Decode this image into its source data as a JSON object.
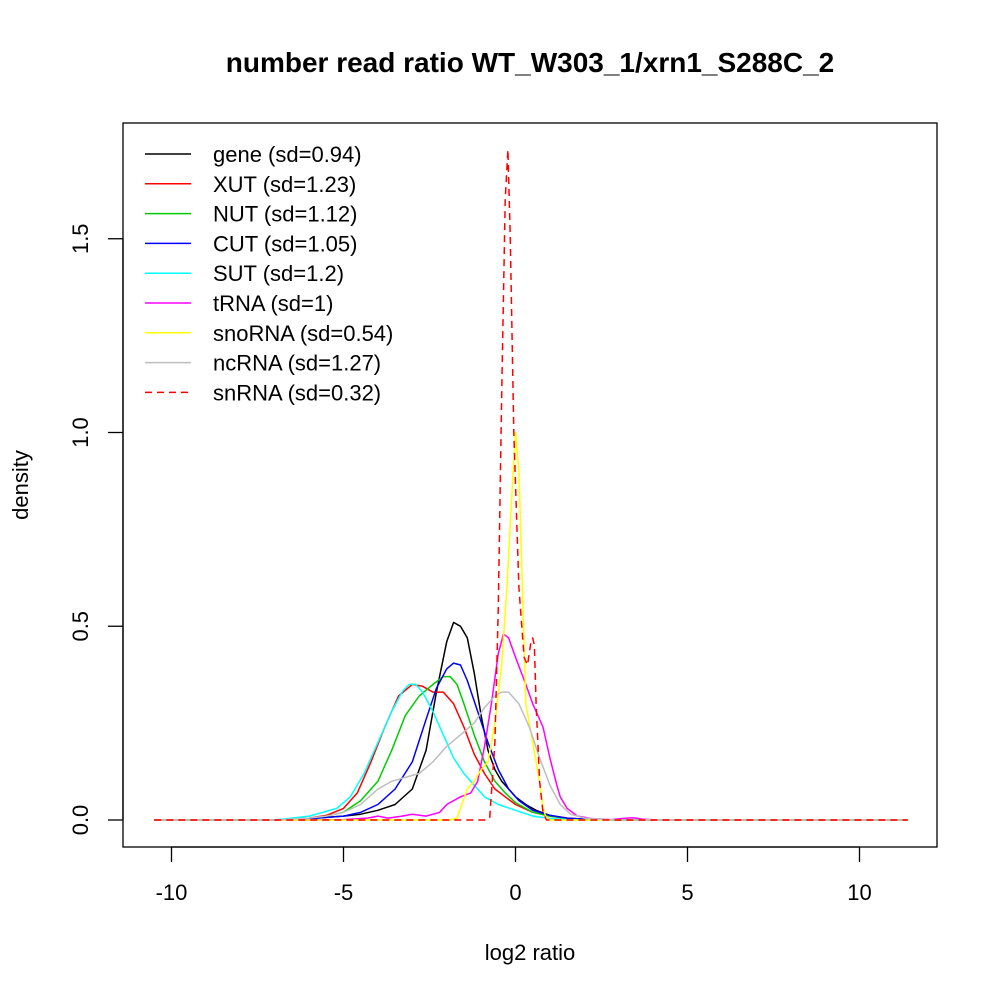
{
  "chart_data": {
    "type": "line",
    "title": "number read ratio WT_W303_1/xrn1_S288C_2",
    "xlabel": "log2 ratio",
    "ylabel": "density",
    "xlim": [
      -10.5,
      11.5
    ],
    "ylim": [
      -0.07,
      1.8
    ],
    "x_ticks": [
      -10,
      -5,
      0,
      5,
      10
    ],
    "x_tick_labels": [
      "-10",
      "-5",
      "0",
      "5",
      "10"
    ],
    "y_ticks": [
      0.0,
      0.5,
      1.0,
      1.5
    ],
    "y_tick_labels": [
      "0.0",
      "0.5",
      "1.0",
      "1.5"
    ],
    "grid": false,
    "legend_position": "top-left",
    "series": [
      {
        "name": "gene (sd=0.94)",
        "color": "#000000",
        "dash": "solid",
        "points": [
          [
            -10.5,
            0
          ],
          [
            -7,
            0
          ],
          [
            -6,
            0.004
          ],
          [
            -5,
            0.01
          ],
          [
            -4.5,
            0.015
          ],
          [
            -4,
            0.025
          ],
          [
            -3.5,
            0.04
          ],
          [
            -3,
            0.08
          ],
          [
            -2.6,
            0.18
          ],
          [
            -2.3,
            0.33
          ],
          [
            -2.0,
            0.46
          ],
          [
            -1.8,
            0.51
          ],
          [
            -1.6,
            0.5
          ],
          [
            -1.4,
            0.47
          ],
          [
            -1.2,
            0.38
          ],
          [
            -1.0,
            0.27
          ],
          [
            -0.8,
            0.18
          ],
          [
            -0.6,
            0.13
          ],
          [
            -0.4,
            0.1
          ],
          [
            -0.2,
            0.08
          ],
          [
            0,
            0.06
          ],
          [
            0.3,
            0.04
          ],
          [
            0.6,
            0.025
          ],
          [
            1,
            0.012
          ],
          [
            1.5,
            0.005
          ],
          [
            2,
            0.002
          ],
          [
            3,
            0
          ],
          [
            11.4,
            0
          ]
        ]
      },
      {
        "name": "XUT (sd=1.23)",
        "color": "#ff0000",
        "dash": "solid",
        "points": [
          [
            -10.5,
            0
          ],
          [
            -7,
            0
          ],
          [
            -6,
            0.005
          ],
          [
            -5.5,
            0.012
          ],
          [
            -5,
            0.03
          ],
          [
            -4.6,
            0.07
          ],
          [
            -4.2,
            0.15
          ],
          [
            -3.8,
            0.24
          ],
          [
            -3.4,
            0.32
          ],
          [
            -3.0,
            0.35
          ],
          [
            -2.7,
            0.345
          ],
          [
            -2.4,
            0.33
          ],
          [
            -2.1,
            0.33
          ],
          [
            -1.8,
            0.3
          ],
          [
            -1.5,
            0.24
          ],
          [
            -1.2,
            0.17
          ],
          [
            -0.9,
            0.12
          ],
          [
            -0.6,
            0.08
          ],
          [
            -0.3,
            0.06
          ],
          [
            0,
            0.04
          ],
          [
            0.5,
            0.02
          ],
          [
            1,
            0.01
          ],
          [
            1.5,
            0.005
          ],
          [
            2,
            0.002
          ],
          [
            3,
            0
          ],
          [
            11.4,
            0
          ]
        ]
      },
      {
        "name": "NUT (sd=1.12)",
        "color": "#00cd00",
        "dash": "solid",
        "points": [
          [
            -10.5,
            0
          ],
          [
            -7,
            0
          ],
          [
            -6,
            0.004
          ],
          [
            -5.5,
            0.01
          ],
          [
            -5,
            0.02
          ],
          [
            -4.5,
            0.05
          ],
          [
            -4.0,
            0.1
          ],
          [
            -3.6,
            0.18
          ],
          [
            -3.2,
            0.27
          ],
          [
            -2.8,
            0.32
          ],
          [
            -2.4,
            0.35
          ],
          [
            -2.1,
            0.37
          ],
          [
            -1.9,
            0.37
          ],
          [
            -1.7,
            0.35
          ],
          [
            -1.5,
            0.3
          ],
          [
            -1.2,
            0.22
          ],
          [
            -0.9,
            0.15
          ],
          [
            -0.6,
            0.1
          ],
          [
            -0.3,
            0.07
          ],
          [
            0,
            0.045
          ],
          [
            0.5,
            0.02
          ],
          [
            1,
            0.01
          ],
          [
            1.5,
            0.004
          ],
          [
            2,
            0.002
          ],
          [
            3,
            0
          ],
          [
            11.4,
            0
          ]
        ]
      },
      {
        "name": "CUT (sd=1.05)",
        "color": "#0000ff",
        "dash": "solid",
        "points": [
          [
            -10.5,
            0
          ],
          [
            -7,
            0
          ],
          [
            -6,
            0.003
          ],
          [
            -5,
            0.01
          ],
          [
            -4.5,
            0.02
          ],
          [
            -4.0,
            0.04
          ],
          [
            -3.5,
            0.08
          ],
          [
            -3.0,
            0.15
          ],
          [
            -2.6,
            0.26
          ],
          [
            -2.3,
            0.34
          ],
          [
            -2.0,
            0.39
          ],
          [
            -1.8,
            0.405
          ],
          [
            -1.6,
            0.4
          ],
          [
            -1.4,
            0.36
          ],
          [
            -1.1,
            0.28
          ],
          [
            -0.8,
            0.2
          ],
          [
            -0.5,
            0.13
          ],
          [
            -0.2,
            0.08
          ],
          [
            0.1,
            0.05
          ],
          [
            0.5,
            0.025
          ],
          [
            1,
            0.012
          ],
          [
            1.5,
            0.005
          ],
          [
            2,
            0.002
          ],
          [
            3,
            0
          ],
          [
            11.4,
            0
          ]
        ]
      },
      {
        "name": "SUT (sd=1.2)",
        "color": "#00ffff",
        "dash": "solid",
        "points": [
          [
            -10.5,
            0
          ],
          [
            -7,
            0
          ],
          [
            -6.5,
            0.005
          ],
          [
            -6,
            0.01
          ],
          [
            -5.6,
            0.02
          ],
          [
            -5.2,
            0.03
          ],
          [
            -4.8,
            0.06
          ],
          [
            -4.4,
            0.12
          ],
          [
            -4.0,
            0.2
          ],
          [
            -3.6,
            0.28
          ],
          [
            -3.3,
            0.33
          ],
          [
            -3.1,
            0.35
          ],
          [
            -2.9,
            0.35
          ],
          [
            -2.7,
            0.33
          ],
          [
            -2.4,
            0.28
          ],
          [
            -2.1,
            0.22
          ],
          [
            -1.8,
            0.16
          ],
          [
            -1.5,
            0.12
          ],
          [
            -1.2,
            0.09
          ],
          [
            -0.9,
            0.06
          ],
          [
            -0.5,
            0.04
          ],
          [
            0,
            0.025
          ],
          [
            0.5,
            0.01
          ],
          [
            1,
            0.004
          ],
          [
            1.5,
            0.001
          ],
          [
            2,
            0
          ],
          [
            11.4,
            0
          ]
        ]
      },
      {
        "name": "tRNA (sd=1)",
        "color": "#ff00ff",
        "dash": "solid",
        "points": [
          [
            -10.5,
            0
          ],
          [
            -6,
            0
          ],
          [
            -5,
            0.001
          ],
          [
            -4.3,
            0.005
          ],
          [
            -4.0,
            0.01
          ],
          [
            -3.7,
            0.005
          ],
          [
            -3.3,
            0.01
          ],
          [
            -3.0,
            0.015
          ],
          [
            -2.6,
            0.01
          ],
          [
            -2.2,
            0.02
          ],
          [
            -2.0,
            0.04
          ],
          [
            -1.6,
            0.06
          ],
          [
            -1.3,
            0.07
          ],
          [
            -1.1,
            0.1
          ],
          [
            -0.9,
            0.19
          ],
          [
            -0.7,
            0.3
          ],
          [
            -0.5,
            0.43
          ],
          [
            -0.35,
            0.48
          ],
          [
            -0.2,
            0.47
          ],
          [
            0,
            0.42
          ],
          [
            0.3,
            0.35
          ],
          [
            0.5,
            0.3
          ],
          [
            0.8,
            0.24
          ],
          [
            1.0,
            0.16
          ],
          [
            1.2,
            0.09
          ],
          [
            1.3,
            0.06
          ],
          [
            1.5,
            0.03
          ],
          [
            1.8,
            0.01
          ],
          [
            2.2,
            0.004
          ],
          [
            2.8,
            0.001
          ],
          [
            3.1,
            0.004
          ],
          [
            3.4,
            0.006
          ],
          [
            3.7,
            0.002
          ],
          [
            4.2,
            0
          ],
          [
            11.4,
            0
          ]
        ]
      },
      {
        "name": "snoRNA (sd=0.54)",
        "color": "#ffff00",
        "dash": "solid",
        "points": [
          [
            -10.5,
            0
          ],
          [
            -2.2,
            0
          ],
          [
            -1.9,
            0.0
          ],
          [
            -1.7,
            0.005
          ],
          [
            -1.4,
            0.08
          ],
          [
            -1.2,
            0.1
          ],
          [
            -1.0,
            0.13
          ],
          [
            -0.8,
            0.15
          ],
          [
            -0.6,
            0.25
          ],
          [
            -0.4,
            0.4
          ],
          [
            -0.25,
            0.6
          ],
          [
            -0.1,
            0.85
          ],
          [
            0.0,
            1.0
          ],
          [
            0.1,
            0.9
          ],
          [
            0.2,
            0.6
          ],
          [
            0.3,
            0.3
          ],
          [
            0.5,
            0.2
          ],
          [
            0.7,
            0.1
          ],
          [
            0.8,
            0.03
          ],
          [
            0.9,
            0.005
          ],
          [
            1.0,
            0
          ],
          [
            11.4,
            0
          ]
        ]
      },
      {
        "name": "ncRNA (sd=1.27)",
        "color": "#bebebe",
        "dash": "solid",
        "points": [
          [
            -10.5,
            0
          ],
          [
            -7,
            0
          ],
          [
            -6,
            0.005
          ],
          [
            -5.5,
            0.01
          ],
          [
            -5,
            0.02
          ],
          [
            -4.5,
            0.04
          ],
          [
            -4.0,
            0.08
          ],
          [
            -3.6,
            0.1
          ],
          [
            -3.2,
            0.11
          ],
          [
            -2.8,
            0.12
          ],
          [
            -2.4,
            0.15
          ],
          [
            -2.0,
            0.19
          ],
          [
            -1.6,
            0.22
          ],
          [
            -1.2,
            0.25
          ],
          [
            -0.9,
            0.29
          ],
          [
            -0.6,
            0.32
          ],
          [
            -0.4,
            0.33
          ],
          [
            -0.2,
            0.33
          ],
          [
            0.1,
            0.3
          ],
          [
            0.4,
            0.24
          ],
          [
            0.7,
            0.16
          ],
          [
            1.0,
            0.09
          ],
          [
            1.3,
            0.04
          ],
          [
            1.6,
            0.015
          ],
          [
            2,
            0.005
          ],
          [
            2.5,
            0.002
          ],
          [
            3,
            0
          ],
          [
            11.4,
            0
          ]
        ]
      },
      {
        "name": "snRNA (sd=0.32)",
        "color": "#ff0000",
        "dash": "dashed",
        "points": [
          [
            -10.5,
            0
          ],
          [
            -0.9,
            0
          ],
          [
            -0.75,
            0.005
          ],
          [
            -0.6,
            0.2
          ],
          [
            -0.5,
            0.55
          ],
          [
            -0.4,
            1.1
          ],
          [
            -0.3,
            1.6
          ],
          [
            -0.22,
            1.73
          ],
          [
            -0.15,
            1.5
          ],
          [
            -0.05,
            1.0
          ],
          [
            0.1,
            0.6
          ],
          [
            0.25,
            0.42
          ],
          [
            0.35,
            0.4
          ],
          [
            0.45,
            0.46
          ],
          [
            0.5,
            0.47
          ],
          [
            0.55,
            0.45
          ],
          [
            0.6,
            0.3
          ],
          [
            0.7,
            0.1
          ],
          [
            0.8,
            0.02
          ],
          [
            0.9,
            0
          ],
          [
            11.4,
            0
          ]
        ]
      }
    ]
  }
}
